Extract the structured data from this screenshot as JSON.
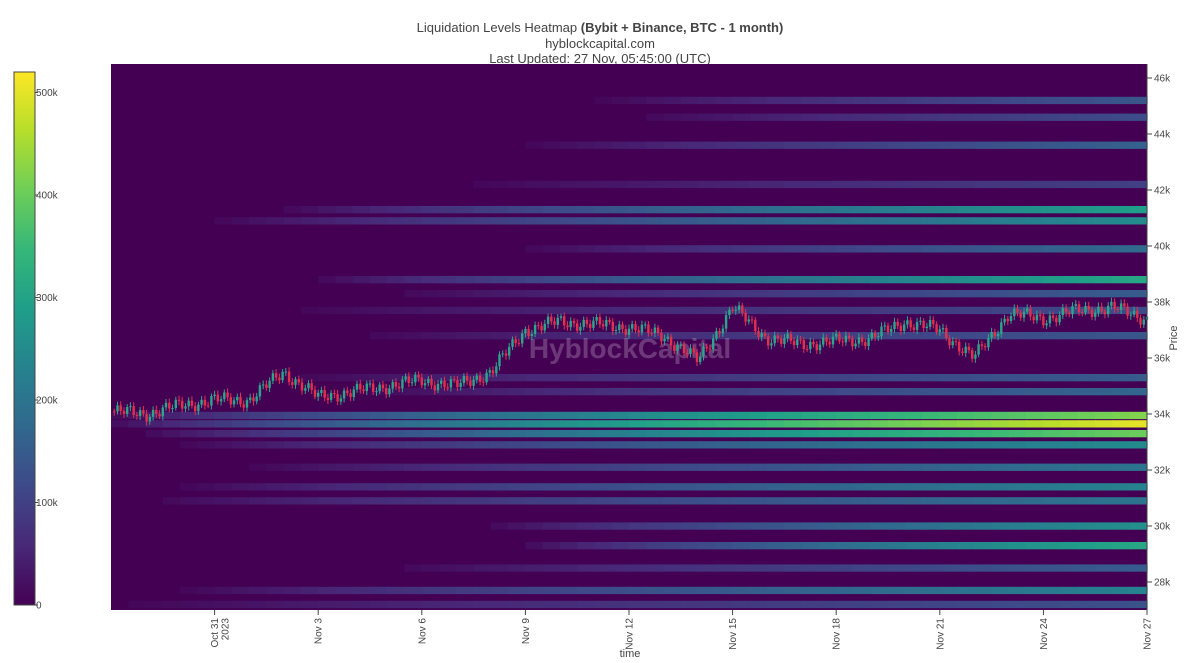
{
  "header": {
    "title_prefix": "Liquidation Levels Heatmap ",
    "title_bold": "(Bybit + Binance, BTC - 1 month)",
    "subtitle": "hyblockcapital.com",
    "updated": "Last Updated: 27 Nov, 05:45:00 (UTC)"
  },
  "watermark": "HyblockCapital",
  "colors": {
    "background": "#440154",
    "colorscale": [
      "#440154",
      "#482878",
      "#3e4989",
      "#31688e",
      "#26828e",
      "#1f9e89",
      "#35b779",
      "#6ece58",
      "#b5de2b",
      "#fde725"
    ],
    "candle_up": "#2ca58d",
    "candle_down": "#e0304e"
  },
  "chart_data": {
    "type": "heatmap",
    "title": "Liquidation Levels Heatmap (Bybit + Binance, BTC - 1 month)",
    "xlabel": "time",
    "ylabel": "Price",
    "x_range": [
      "2023-10-28",
      "2023-11-27"
    ],
    "y_range": [
      27000,
      46500
    ],
    "x_ticks": [
      {
        "date": "2023-10-31",
        "label": "Oct 31",
        "label2": "2023"
      },
      {
        "date": "2023-11-03",
        "label": "Nov 3",
        "label2": ""
      },
      {
        "date": "2023-11-06",
        "label": "Nov 6",
        "label2": ""
      },
      {
        "date": "2023-11-09",
        "label": "Nov 9",
        "label2": ""
      },
      {
        "date": "2023-11-12",
        "label": "Nov 12",
        "label2": ""
      },
      {
        "date": "2023-11-15",
        "label": "Nov 15",
        "label2": ""
      },
      {
        "date": "2023-11-18",
        "label": "Nov 18",
        "label2": ""
      },
      {
        "date": "2023-11-21",
        "label": "Nov 21",
        "label2": ""
      },
      {
        "date": "2023-11-24",
        "label": "Nov 24",
        "label2": ""
      },
      {
        "date": "2023-11-27",
        "label": "Nov 27",
        "label2": ""
      }
    ],
    "y_ticks": [
      {
        "value": 28000,
        "label": "28k"
      },
      {
        "value": 30000,
        "label": "30k"
      },
      {
        "value": 32000,
        "label": "32k"
      },
      {
        "value": 34000,
        "label": "34k"
      },
      {
        "value": 36000,
        "label": "36k"
      },
      {
        "value": 38000,
        "label": "38k"
      },
      {
        "value": 40000,
        "label": "40k"
      },
      {
        "value": 42000,
        "label": "42k"
      },
      {
        "value": 44000,
        "label": "44k"
      },
      {
        "value": 46000,
        "label": "46k"
      }
    ],
    "colorbar": {
      "min": 0,
      "max": 520000,
      "ticks": [
        {
          "value": 0,
          "label": "0"
        },
        {
          "value": 100000,
          "label": "100k"
        },
        {
          "value": 200000,
          "label": "200k"
        },
        {
          "value": 300000,
          "label": "300k"
        },
        {
          "value": 400000,
          "label": "400k"
        },
        {
          "value": 500000,
          "label": "500k"
        }
      ]
    },
    "liquidation_bands": [
      {
        "price": 45200,
        "start": "2023-11-11",
        "peak": 140000
      },
      {
        "price": 44600,
        "start": "2023-11-12",
        "peak": 120000
      },
      {
        "price": 43600,
        "start": "2023-11-09",
        "peak": 160000
      },
      {
        "price": 42200,
        "start": "2023-11-07",
        "peak": 100000
      },
      {
        "price": 41300,
        "start": "2023-11-02",
        "peak": 290000
      },
      {
        "price": 40900,
        "start": "2023-10-31",
        "peak": 250000
      },
      {
        "price": 39900,
        "start": "2023-11-09",
        "peak": 180000
      },
      {
        "price": 38800,
        "start": "2023-11-03",
        "peak": 310000
      },
      {
        "price": 38300,
        "start": "2023-11-05",
        "peak": 150000
      },
      {
        "price": 37700,
        "start": "2023-11-02",
        "peak": 120000
      },
      {
        "price": 36800,
        "start": "2023-11-04",
        "peak": 140000
      },
      {
        "price": 35300,
        "start": "2023-11-02",
        "peak": 150000
      },
      {
        "price": 34800,
        "start": "2023-11-04",
        "peak": 170000
      },
      {
        "price": 33950,
        "start": "2023-10-28",
        "peak": 420000
      },
      {
        "price": 33650,
        "start": "2023-10-28",
        "peak": 500000
      },
      {
        "price": 33300,
        "start": "2023-10-29",
        "peak": 400000
      },
      {
        "price": 32900,
        "start": "2023-10-30",
        "peak": 250000
      },
      {
        "price": 32100,
        "start": "2023-11-01",
        "peak": 200000
      },
      {
        "price": 31400,
        "start": "2023-10-30",
        "peak": 230000
      },
      {
        "price": 30900,
        "start": "2023-10-29",
        "peak": 200000
      },
      {
        "price": 30000,
        "start": "2023-11-08",
        "peak": 260000
      },
      {
        "price": 29300,
        "start": "2023-11-09",
        "peak": 310000
      },
      {
        "price": 28500,
        "start": "2023-11-05",
        "peak": 150000
      },
      {
        "price": 27700,
        "start": "2023-10-30",
        "peak": 230000
      },
      {
        "price": 27200,
        "start": "2023-10-28",
        "peak": 130000
      }
    ],
    "price_series": {
      "name": "BTC price",
      "dates": [
        "2023-10-28",
        "2023-10-29",
        "2023-10-30",
        "2023-10-31",
        "2023-11-01",
        "2023-11-02",
        "2023-11-03",
        "2023-11-04",
        "2023-11-05",
        "2023-11-06",
        "2023-11-07",
        "2023-11-08",
        "2023-11-09",
        "2023-11-10",
        "2023-11-11",
        "2023-11-12",
        "2023-11-13",
        "2023-11-14",
        "2023-11-15",
        "2023-11-16",
        "2023-11-17",
        "2023-11-18",
        "2023-11-19",
        "2023-11-20",
        "2023-11-21",
        "2023-11-22",
        "2023-11-23",
        "2023-11-24",
        "2023-11-25",
        "2023-11-26",
        "2023-11-27"
      ],
      "values": [
        34100,
        34000,
        34300,
        34500,
        34500,
        35500,
        34600,
        34800,
        35000,
        35200,
        35000,
        35500,
        37000,
        37300,
        37200,
        37100,
        36800,
        35900,
        37800,
        36700,
        36500,
        36600,
        36700,
        37300,
        37000,
        36000,
        37600,
        37400,
        37700,
        37800,
        37400
      ]
    }
  }
}
